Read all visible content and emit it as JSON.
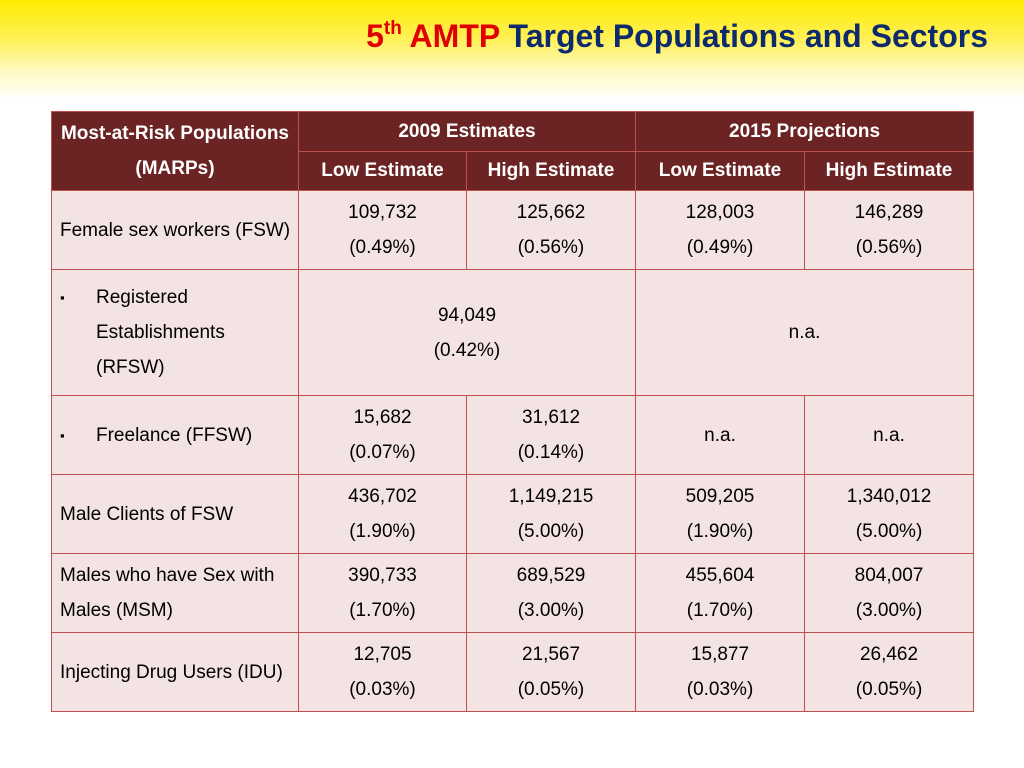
{
  "title": {
    "sup_base": "5",
    "sup": "th",
    "amtp": "AMTP",
    "rest": "Target Populations and Sectors"
  },
  "table": {
    "header": {
      "corner": "Most-at-Risk Populations (MARPs)",
      "group_2009": "2009 Estimates",
      "group_2015": "2015 Projections",
      "low": "Low Estimate",
      "high": "High Estimate"
    },
    "rows": [
      {
        "label": "Female sex workers (FSW)",
        "cells": [
          "109,732",
          "(0.49%)",
          "125,662",
          "(0.56%)",
          "128,003",
          "(0.49%)",
          "146,289",
          "(0.56%)"
        ]
      },
      {
        "label": "Registered Establishments (RFSW)",
        "bullet": "▪",
        "merged_2009": [
          "94,049",
          "(0.42%)"
        ],
        "merged_2015": "n.a."
      },
      {
        "label": "Freelance (FFSW)",
        "bullet": "▪",
        "cells": [
          "15,682",
          "(0.07%)",
          "31,612",
          "(0.14%)",
          "n.a.",
          "n.a."
        ]
      },
      {
        "label": "Male Clients of FSW",
        "cells": [
          "436,702",
          "(1.90%)",
          "1,149,215",
          "(5.00%)",
          "509,205",
          "(1.90%)",
          "1,340,012",
          "(5.00%)"
        ]
      },
      {
        "label": "Males who have Sex with Males (MSM)",
        "cells": [
          "390,733",
          "(1.70%)",
          "689,529",
          "(3.00%)",
          "455,604",
          "(1.70%)",
          "804,007",
          "(3.00%)"
        ]
      },
      {
        "label": "Injecting Drug Users (IDU)",
        "cells": [
          "12,705",
          "(0.03%)",
          "21,567",
          "(0.05%)",
          "15,877",
          "(0.03%)",
          "26,462",
          "(0.05%)"
        ]
      }
    ]
  }
}
